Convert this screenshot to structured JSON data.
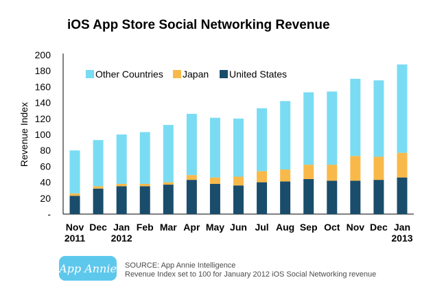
{
  "chart_data": {
    "type": "bar",
    "stacked": true,
    "title": "iOS App Store Social Networking Revenue",
    "xlabel": "",
    "ylabel": "Revenue Index",
    "ylim": [
      0,
      200
    ],
    "yticks": [
      "-",
      "20",
      "40",
      "60",
      "80",
      "100",
      "120",
      "140",
      "160",
      "180",
      "200"
    ],
    "grid": false,
    "legend_position": "top-left",
    "categories": [
      "Nov 2011",
      "Dec",
      "Jan 2012",
      "Feb",
      "Mar",
      "Apr",
      "May",
      "Jun",
      "Jul",
      "Aug",
      "Sep",
      "Oct",
      "Nov",
      "Dec",
      "Jan 2013"
    ],
    "category_labels": [
      [
        "Nov",
        "2011"
      ],
      [
        "Dec"
      ],
      [
        "Jan",
        "2012"
      ],
      [
        "Feb"
      ],
      [
        "Mar"
      ],
      [
        "Apr"
      ],
      [
        "May"
      ],
      [
        "Jun"
      ],
      [
        "Jul"
      ],
      [
        "Aug"
      ],
      [
        "Sep"
      ],
      [
        "Oct"
      ],
      [
        "Nov"
      ],
      [
        "Dec"
      ],
      [
        "Jan",
        "2013"
      ]
    ],
    "series": [
      {
        "name": "United States",
        "color": "#1a4d6b",
        "values": [
          23,
          32,
          35,
          35,
          37,
          43,
          38,
          36,
          40,
          41,
          44,
          42,
          42,
          43,
          46
        ]
      },
      {
        "name": "Japan",
        "color": "#f9b94a",
        "values": [
          3,
          3,
          3,
          3,
          3,
          6,
          8,
          11,
          14,
          15,
          18,
          20,
          31,
          29,
          31
        ]
      },
      {
        "name": "Other Countries",
        "color": "#7adcf2",
        "values": [
          54,
          58,
          62,
          65,
          72,
          77,
          75,
          73,
          79,
          86,
          91,
          92,
          97,
          96,
          111
        ]
      }
    ],
    "legend_order": [
      "Other Countries",
      "Japan",
      "United States"
    ]
  },
  "source": {
    "logo_text": "App Annie",
    "line1": "SOURCE: App Annie Intelligence",
    "line2": "Revenue Index set to 100 for January 2012 iOS Social Networking revenue"
  }
}
